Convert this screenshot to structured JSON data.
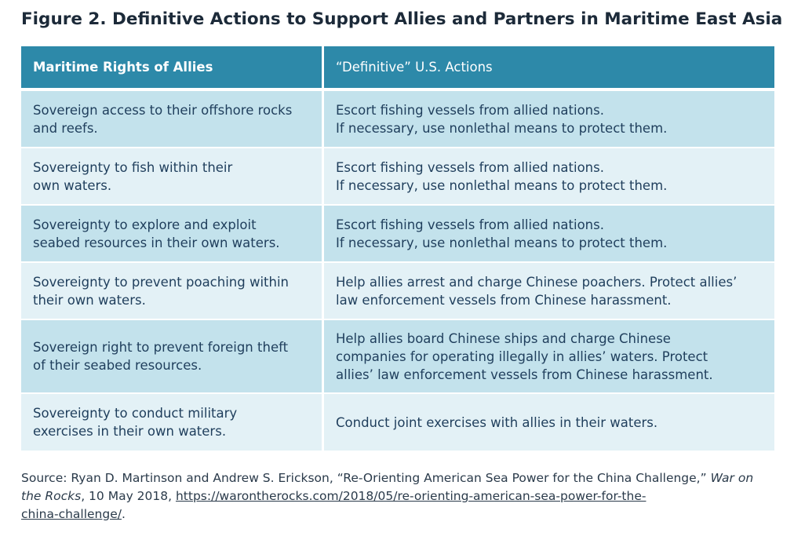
{
  "title": "Figure 2. Definitive Actions to Support Allies and Partners in Maritime East Asia",
  "table": {
    "headers": [
      "Maritime Rights of Allies",
      "“Definitive” U.S. Actions"
    ],
    "rows": [
      {
        "right": [
          "Sovereign access to their offshore rocks",
          "and reefs."
        ],
        "action": [
          "Escort fishing vessels from allied nations.",
          "If necessary, use nonlethal means to protect them."
        ]
      },
      {
        "right": [
          "Sovereignty to fish within their",
          "own waters."
        ],
        "action": [
          "Escort fishing vessels from allied nations.",
          "If necessary, use nonlethal means to protect them."
        ]
      },
      {
        "right": [
          "Sovereignty to explore and exploit",
          "seabed resources in their own waters."
        ],
        "action": [
          "Escort fishing vessels from allied nations.",
          "If necessary, use nonlethal means to protect them."
        ]
      },
      {
        "right": [
          "Sovereignty to prevent poaching within",
          "their own waters."
        ],
        "action": [
          "Help allies arrest and charge Chinese poachers. Protect allies’",
          "law enforcement vessels from Chinese harassment."
        ]
      },
      {
        "right": [
          "Sovereign right to prevent foreign theft",
          "of their seabed resources."
        ],
        "action": [
          "Help allies board Chinese ships and charge Chinese",
          "companies for operating illegally in allies’ waters. Protect",
          "allies’ law enforcement vessels from Chinese harassment."
        ]
      },
      {
        "right": [
          "Sovereignty to conduct military",
          "exercises in their own waters."
        ],
        "action": [
          "Conduct joint exercises with allies in their waters."
        ]
      }
    ]
  },
  "source": {
    "prefix": "Source: Ryan D. Martinson and Andrew S. Erickson, “Re-Orienting American Sea Power for the China Challenge,”",
    "publication": "War on the Rocks",
    "date": ", 10 May 2018, ",
    "url_line1": "https://warontherocks.com/2018/05/re-orienting-american-sea-power-for-the-",
    "url_line2": "china-challenge/",
    "suffix": "."
  }
}
